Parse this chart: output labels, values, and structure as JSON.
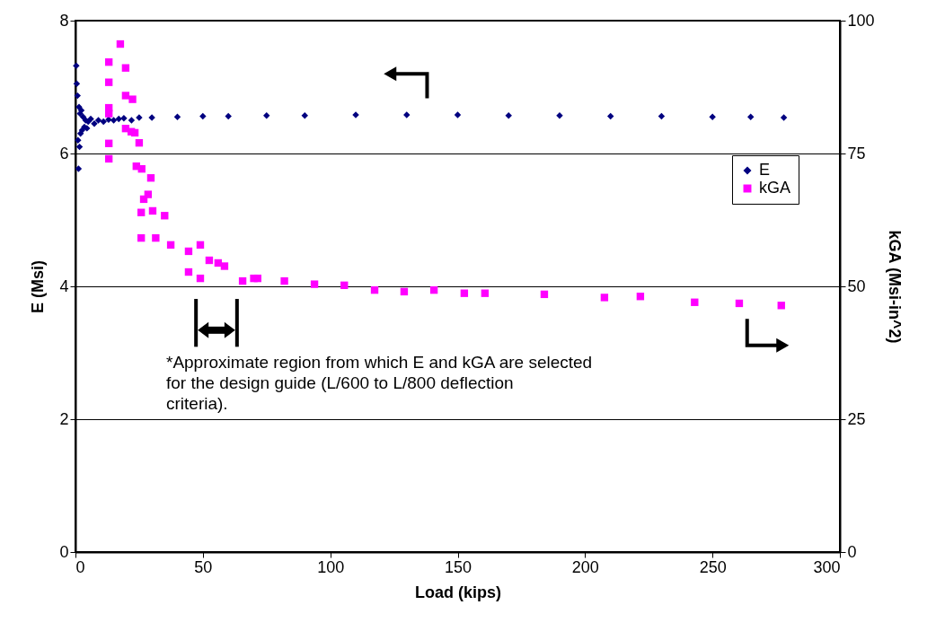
{
  "chart_data": {
    "type": "scatter",
    "xlabel": "Load (kips)",
    "ylabel": "E (Msi)",
    "y2label": "kGA (Msi-in^2)",
    "xlim": [
      0,
      300
    ],
    "xticks": [
      0,
      50,
      100,
      150,
      200,
      250,
      300
    ],
    "ylim": [
      0,
      8
    ],
    "yticks": [
      0,
      2,
      4,
      6,
      8
    ],
    "y2lim": [
      0,
      100
    ],
    "y2ticks": [
      0,
      25,
      50,
      75,
      100
    ],
    "grid": "y",
    "legend": "right",
    "annotations": [
      "*Approximate region from which E and kGA are selected for the design guide (L/600 to L/800 deflection criteria)."
    ],
    "series": [
      {
        "name": "E",
        "color": "#000080",
        "marker": "diamond",
        "x": [
          0.3,
          0.5,
          0.8,
          1,
          1.2,
          1.4,
          1.6,
          1.8,
          2,
          2.3,
          2.6,
          3,
          3.5,
          4,
          4.5,
          5,
          6,
          7.4,
          9,
          11,
          13,
          15,
          17,
          19,
          22,
          25,
          30,
          40,
          50,
          60,
          75,
          90,
          110,
          130,
          150,
          170,
          190,
          210,
          230,
          250,
          265,
          278
        ],
        "values": [
          7.32,
          7.05,
          6.87,
          6.2,
          5.77,
          6.7,
          6.1,
          6.6,
          6.3,
          6.65,
          6.35,
          6.55,
          6.4,
          6.5,
          6.38,
          6.48,
          6.52,
          6.45,
          6.5,
          6.48,
          6.51,
          6.5,
          6.52,
          6.53,
          6.5,
          6.54,
          6.54,
          6.55,
          6.56,
          6.56,
          6.57,
          6.57,
          6.58,
          6.58,
          6.58,
          6.57,
          6.57,
          6.56,
          6.56,
          6.55,
          6.55,
          6.54
        ]
      },
      {
        "name": "kGA",
        "color": "#ff00ff",
        "marker": "square",
        "axis": "y2",
        "x": [
          13.1,
          13.1,
          13.1,
          13.1,
          13.1,
          13.1,
          17.6,
          19.7,
          19.7,
          19.7,
          21.9,
          22.4,
          23.3,
          23.9,
          25,
          25.8,
          25.8,
          26,
          26.8,
          28.5,
          29.6,
          30.3,
          31.5,
          35,
          37.4,
          44.4,
          44.4,
          49,
          49,
          52.5,
          56,
          58.5,
          65.6,
          70,
          71.5,
          82,
          93.8,
          105.5,
          117.4,
          129,
          140.7,
          152.6,
          160.7,
          184,
          207.6,
          221.7,
          243,
          260.5,
          277
        ],
        "values": [
          92.2,
          88.4,
          83.6,
          82.5,
          76.9,
          74,
          95.6,
          91.1,
          85.9,
          79.7,
          79.1,
          85.2,
          78.9,
          72.6,
          77,
          63.9,
          59.1,
          72.1,
          66.4,
          67.3,
          70.4,
          64.2,
          59.1,
          63.3,
          57.8,
          56.6,
          52.7,
          57.8,
          51.5,
          54.9,
          54.4,
          53.8,
          51,
          51.5,
          51.5,
          51,
          50.4,
          50.2,
          49.3,
          49,
          49.3,
          48.7,
          48.7,
          48.5,
          47.9,
          48.1,
          47,
          46.8,
          46.4
        ]
      }
    ]
  }
}
